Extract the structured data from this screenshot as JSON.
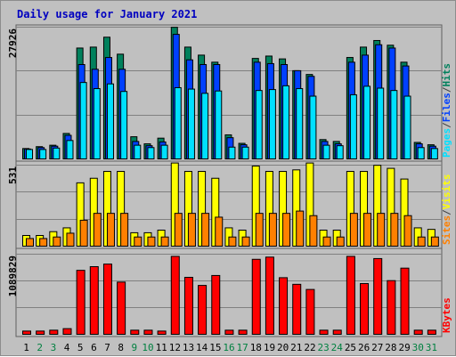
{
  "title": "Daily usage for January 2021",
  "colors": {
    "background": "#c0c0c0",
    "panel": "#c0c0c0",
    "title": "#0000c0",
    "weekday_label": "#000000",
    "weekend_label": "#008040",
    "hits": "#00805c",
    "files": "#0040ff",
    "pages": "#00e0ff",
    "visits": "#ffff00",
    "sites": "#ff8000",
    "kbytes": "#ff0000"
  },
  "chart_data": [
    {
      "type": "bar",
      "panel": "hits-files-pages",
      "y_axis_label": "27926",
      "ylim": [
        0,
        27926
      ],
      "side_label": [
        "Pages",
        "/",
        "Files",
        "/",
        "Hits"
      ],
      "side_label_colors": [
        "#00e0ff",
        "#404040",
        "#0040ff",
        "#404040",
        "#00805c"
      ],
      "categories": [
        "1",
        "2",
        "3",
        "4",
        "5",
        "6",
        "7",
        "8",
        "9",
        "10",
        "11",
        "12",
        "13",
        "14",
        "15",
        "16",
        "17",
        "18",
        "19",
        "20",
        "21",
        "22",
        "23",
        "24",
        "25",
        "26",
        "27",
        "28",
        "29",
        "30",
        "31"
      ],
      "series": [
        {
          "name": "Hits",
          "color": "#00805c",
          "values": [
            2200,
            2600,
            2900,
            5400,
            23500,
            23700,
            25800,
            22200,
            4700,
            3200,
            4400,
            27900,
            23700,
            22000,
            20500,
            5100,
            3300,
            21300,
            21800,
            21200,
            18700,
            17900,
            4100,
            3700,
            21500,
            23700,
            25100,
            24100,
            20500,
            3500,
            3000
          ]
        },
        {
          "name": "Files",
          "color": "#0040ff",
          "values": [
            2100,
            2400,
            2700,
            5000,
            20000,
            19000,
            21500,
            19000,
            3700,
            2800,
            3600,
            26400,
            21000,
            20000,
            20000,
            4500,
            3000,
            20500,
            20200,
            20000,
            18700,
            17500,
            3700,
            3200,
            20500,
            22000,
            24200,
            23500,
            19700,
            3200,
            2700
          ]
        },
        {
          "name": "Pages",
          "color": "#00e0ff",
          "values": [
            2000,
            2000,
            2300,
            3900,
            16200,
            14900,
            15900,
            14300,
            2900,
            2400,
            2900,
            15100,
            14800,
            13900,
            14400,
            2500,
            2500,
            14500,
            14700,
            15500,
            14900,
            13300,
            2900,
            2800,
            13600,
            15400,
            15000,
            14500,
            13300,
            2400,
            2200
          ]
        }
      ]
    },
    {
      "type": "bar",
      "panel": "visits-sites",
      "y_axis_label": "531",
      "ylim": [
        0,
        531
      ],
      "side_label": [
        "Sites",
        "/",
        "Visits"
      ],
      "side_label_colors": [
        "#ff8000",
        "#404040",
        "#ffff00"
      ],
      "categories": [
        "1",
        "2",
        "3",
        "4",
        "5",
        "6",
        "7",
        "8",
        "9",
        "10",
        "11",
        "12",
        "13",
        "14",
        "15",
        "16",
        "17",
        "18",
        "19",
        "20",
        "21",
        "22",
        "23",
        "24",
        "25",
        "26",
        "27",
        "28",
        "29",
        "30",
        "31"
      ],
      "series": [
        {
          "name": "Visits",
          "color": "#ffff00",
          "values": [
            70,
            70,
            95,
            120,
            415,
            445,
            490,
            490,
            88,
            88,
            105,
            545,
            490,
            490,
            445,
            120,
            105,
            525,
            490,
            490,
            500,
            545,
            105,
            105,
            490,
            490,
            530,
            510,
            440,
            120,
            110
          ]
        },
        {
          "name": "Sites",
          "color": "#ff8000",
          "values": [
            50,
            50,
            60,
            85,
            170,
            215,
            215,
            215,
            60,
            60,
            60,
            215,
            215,
            215,
            190,
            60,
            60,
            215,
            215,
            215,
            230,
            200,
            60,
            60,
            215,
            215,
            215,
            215,
            200,
            60,
            60
          ]
        }
      ]
    },
    {
      "type": "bar",
      "panel": "kbytes",
      "y_axis_label": "1089829",
      "ylim": [
        0,
        1089829
      ],
      "side_label": [
        "KBytes"
      ],
      "side_label_colors": [
        "#ff0000"
      ],
      "categories": [
        "1",
        "2",
        "3",
        "4",
        "5",
        "6",
        "7",
        "8",
        "9",
        "10",
        "11",
        "12",
        "13",
        "14",
        "15",
        "16",
        "17",
        "18",
        "19",
        "20",
        "21",
        "22",
        "23",
        "24",
        "25",
        "26",
        "27",
        "28",
        "29",
        "30",
        "31"
      ],
      "series": [
        {
          "name": "KBytes",
          "color": "#ff0000",
          "values": [
            44000,
            44000,
            56000,
            77000,
            870000,
            920000,
            955000,
            710000,
            56000,
            56000,
            44000,
            1060000,
            775000,
            665000,
            800000,
            56000,
            56000,
            1020000,
            1050000,
            770000,
            680000,
            610000,
            56000,
            56000,
            1060000,
            690000,
            1030000,
            730000,
            900000,
            56000,
            56000
          ]
        }
      ]
    }
  ],
  "x_axis": {
    "labels": [
      "1",
      "2",
      "3",
      "4",
      "5",
      "6",
      "7",
      "8",
      "9",
      "10",
      "11",
      "12",
      "13",
      "14",
      "15",
      "16",
      "17",
      "18",
      "19",
      "20",
      "21",
      "22",
      "23",
      "24",
      "25",
      "26",
      "27",
      "28",
      "29",
      "30",
      "31"
    ],
    "weekend": [
      false,
      true,
      true,
      false,
      false,
      false,
      false,
      false,
      true,
      true,
      false,
      false,
      false,
      false,
      false,
      true,
      true,
      false,
      false,
      false,
      false,
      false,
      true,
      true,
      false,
      false,
      false,
      false,
      false,
      true,
      true
    ]
  }
}
